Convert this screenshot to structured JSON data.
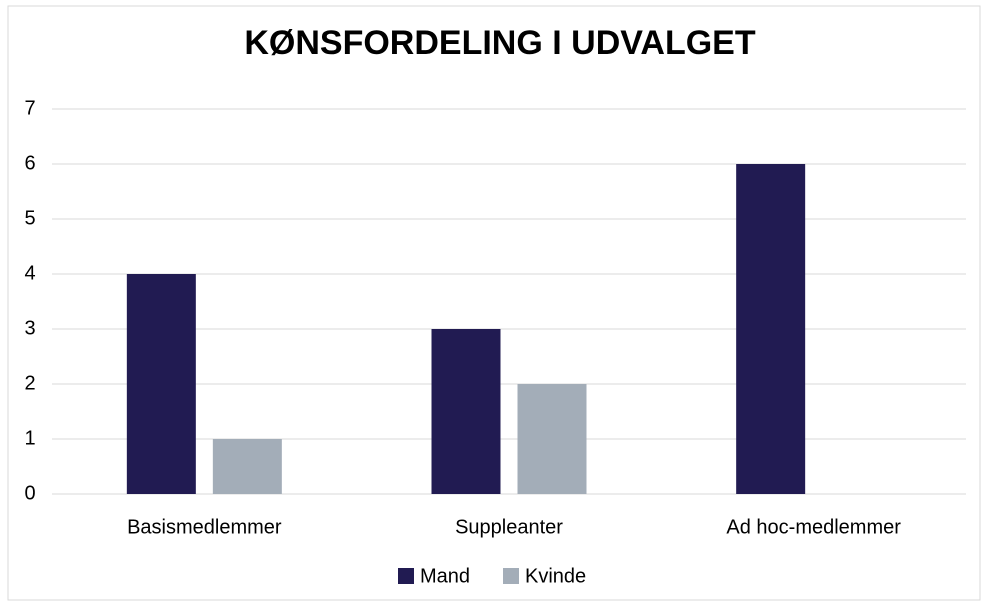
{
  "chart_data": {
    "type": "bar",
    "title": "KØNSFORDELING I UDVALGET",
    "categories": [
      "Basismedlemmer",
      "Suppleanter",
      "Ad hoc-medlemmer"
    ],
    "series": [
      {
        "name": "Mand",
        "color": "#211b52",
        "values": [
          4,
          3,
          6
        ]
      },
      {
        "name": "Kvinde",
        "color": "#a3adb8",
        "values": [
          1,
          2,
          0
        ]
      }
    ],
    "ylim": [
      0,
      7
    ],
    "yticks": [
      0,
      1,
      2,
      3,
      4,
      5,
      6,
      7
    ],
    "grid": true,
    "legend": "bottom"
  }
}
